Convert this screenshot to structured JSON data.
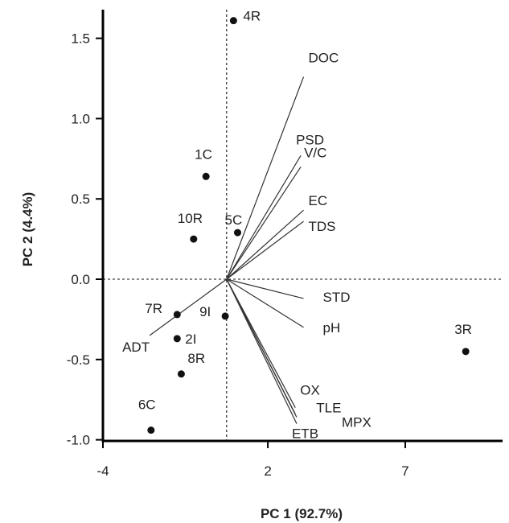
{
  "chart_data": {
    "type": "scatter",
    "subtype": "biplot",
    "title": "",
    "xlabel": "PC 1 (92.7%)",
    "ylabel": "PC 2 (4.4%)",
    "xlim": [
      -4,
      9.5
    ],
    "ylim": [
      -1.0,
      1.7
    ],
    "x_ticks": [
      -4,
      2,
      7
    ],
    "y_ticks": [
      1.5,
      1.0,
      0.5,
      0.0,
      -0.5,
      -1.0
    ],
    "y_tick_labels": [
      "1.5",
      "1.0",
      "0.5",
      "0.0",
      "-0.5",
      "-1.0"
    ],
    "grid": false,
    "reference_lines": {
      "x": 0.5,
      "y": 0.0,
      "style": "dashed"
    },
    "colors": {
      "points": "#111111",
      "vectors": "#333333",
      "axes": "#000000"
    },
    "points": [
      {
        "label": "4R",
        "x": 0.75,
        "y": 1.61
      },
      {
        "label": "1C",
        "x": -0.25,
        "y": 0.64
      },
      {
        "label": "10R",
        "x": -0.7,
        "y": 0.25
      },
      {
        "label": "5C",
        "x": 0.9,
        "y": 0.29
      },
      {
        "label": "7R",
        "x": -1.3,
        "y": -0.22
      },
      {
        "label": "9I",
        "x": 0.45,
        "y": -0.23
      },
      {
        "label": "2I",
        "x": -1.3,
        "y": -0.37
      },
      {
        "label": "8R",
        "x": -1.15,
        "y": -0.59
      },
      {
        "label": "6C",
        "x": -2.25,
        "y": -0.94
      },
      {
        "label": "3R",
        "x": 9.2,
        "y": -0.45
      }
    ],
    "loadings": [
      {
        "label": "DOC",
        "x": 3.3,
        "y": 1.26
      },
      {
        "label": "PSD",
        "x": 3.2,
        "y": 0.77
      },
      {
        "label": "V/C",
        "x": 3.2,
        "y": 0.7
      },
      {
        "label": "EC",
        "x": 3.3,
        "y": 0.43
      },
      {
        "label": "TDS",
        "x": 3.3,
        "y": 0.36
      },
      {
        "label": "STD",
        "x": 3.3,
        "y": -0.12
      },
      {
        "label": "pH",
        "x": 3.3,
        "y": -0.3
      },
      {
        "label": "OX",
        "x": 3.0,
        "y": -0.8
      },
      {
        "label": "TLE",
        "x": 3.0,
        "y": -0.84
      },
      {
        "label": "MPX",
        "x": 3.05,
        "y": -0.86
      },
      {
        "label": "ETB",
        "x": 3.05,
        "y": -0.9
      },
      {
        "label": "ADT",
        "x": -2.3,
        "y": -0.35
      }
    ]
  }
}
